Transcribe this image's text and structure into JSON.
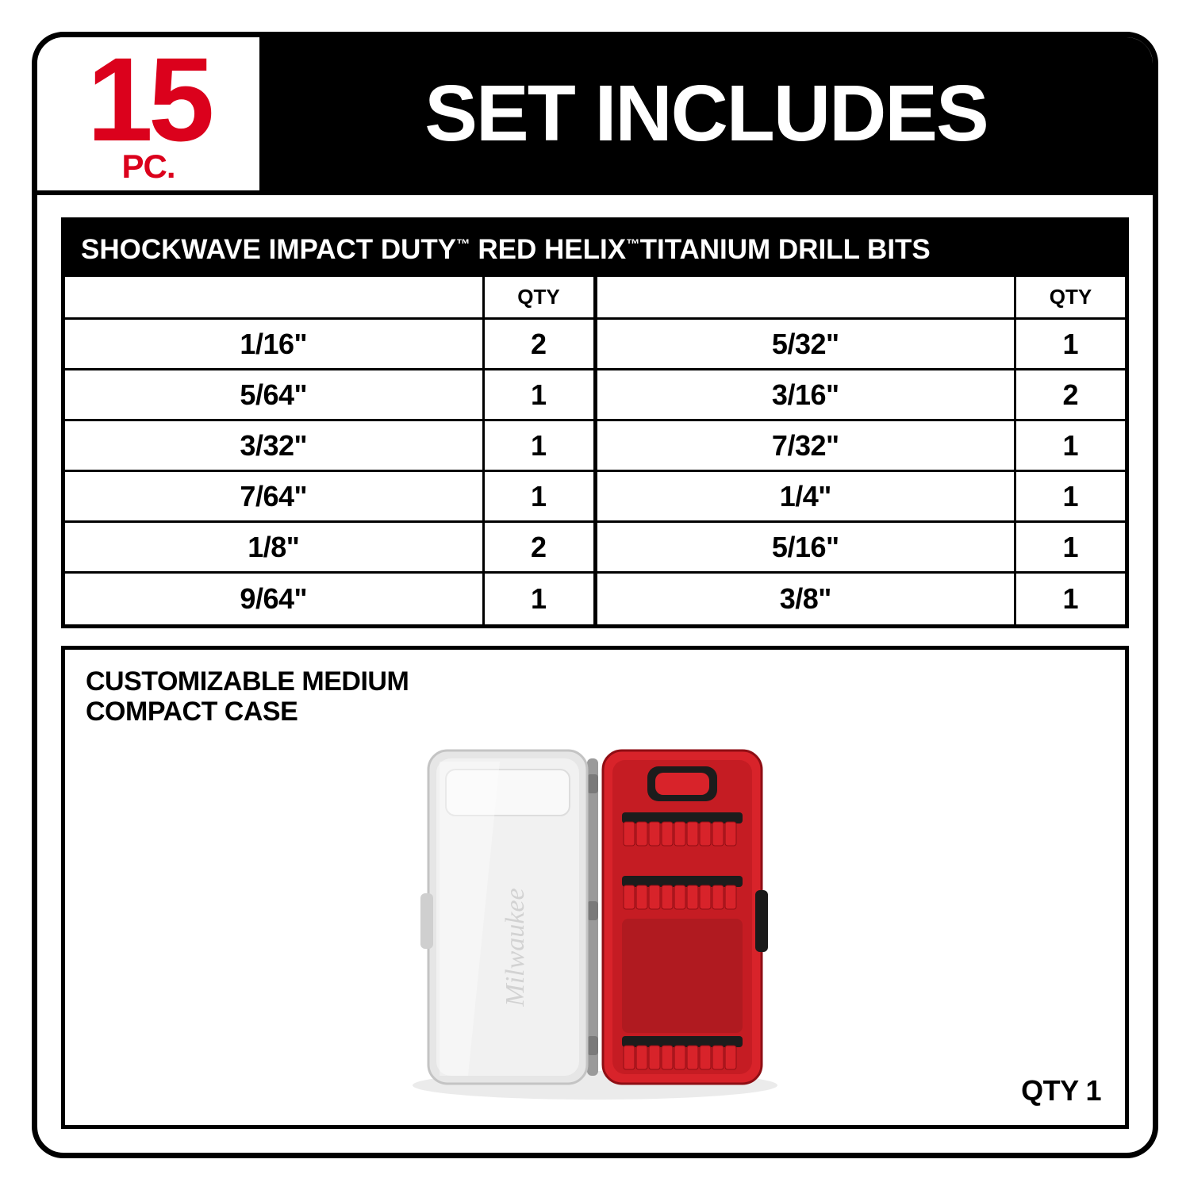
{
  "header": {
    "count_number": "15",
    "count_unit": "PC.",
    "title": "SET INCLUDES"
  },
  "table": {
    "title_parts": [
      "SHOCKWAVE",
      " IMPACT DUTY",
      "™",
      " RED HELIX",
      "™",
      "TITANIUM DRILL BITS"
    ],
    "qty_label": "QTY",
    "left": [
      {
        "size": "1/16\"",
        "qty": "2"
      },
      {
        "size": "5/64\"",
        "qty": "1"
      },
      {
        "size": "3/32\"",
        "qty": "1"
      },
      {
        "size": "7/64\"",
        "qty": "1"
      },
      {
        "size": "1/8\"",
        "qty": "2"
      },
      {
        "size": "9/64\"",
        "qty": "1"
      }
    ],
    "right": [
      {
        "size": "5/32\"",
        "qty": "1"
      },
      {
        "size": "3/16\"",
        "qty": "2"
      },
      {
        "size": "7/32\"",
        "qty": "1"
      },
      {
        "size": "1/4\"",
        "qty": "1"
      },
      {
        "size": "5/16\"",
        "qty": "1"
      },
      {
        "size": "3/8\"",
        "qty": "1"
      }
    ]
  },
  "case": {
    "title_line1": "CUSTOMIZABLE MEDIUM",
    "title_line2": "COMPACT CASE",
    "qty_label": "QTY 1"
  },
  "colors": {
    "brand_red": "#db011c",
    "text_black": "#000000",
    "white": "#ffffff",
    "case_red": "#d8232a",
    "case_dark": "#a01016",
    "lid_grey": "#d9d9d9",
    "lid_edge": "#bcbcbc",
    "hinge": "#9a9a9a"
  }
}
